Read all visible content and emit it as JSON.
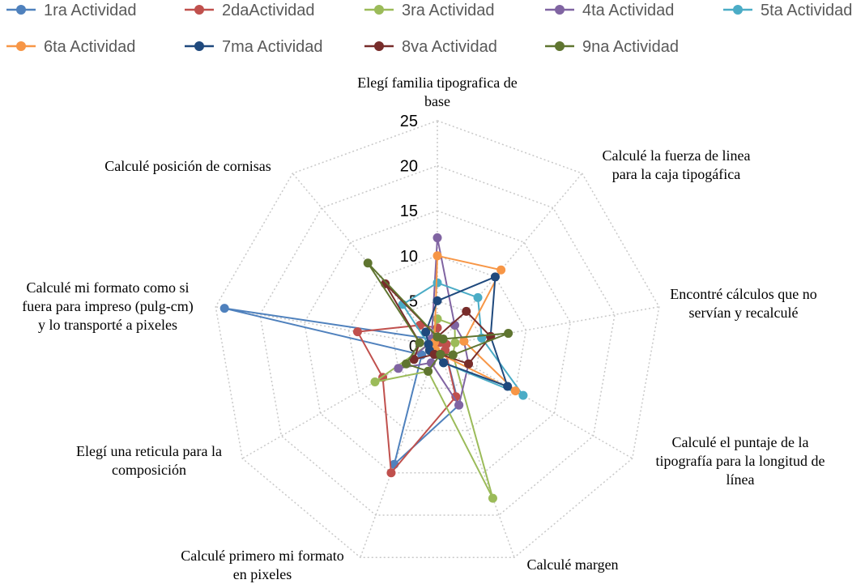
{
  "chart_data": {
    "type": "radar",
    "title": "",
    "rlim": [
      0,
      25
    ],
    "r_ticks": [
      "0",
      "5",
      "10",
      "15",
      "20",
      "25"
    ],
    "axes": [
      [
        "Elegí familia tipografica de",
        "base"
      ],
      [
        "Calculé la fuerza de linea",
        "para la caja tipogáfica"
      ],
      [
        "Encontré cálculos que no",
        "servían y recalculé"
      ],
      [
        "Calculé el puntaje de la",
        "tipografía para la longitud de",
        "línea"
      ],
      [
        "Calculé margen"
      ],
      [
        "Calculé primero mi formato",
        "en pixeles"
      ],
      [
        "Elegí una reticula para la",
        "composición"
      ],
      [
        "Calculé mi formato como si",
        "fuera para impreso (pulg-cm)",
        "y lo transporté a pixeles"
      ],
      [
        "Calculé posición de cornisas"
      ]
    ],
    "legend_position": "top",
    "series": [
      {
        "name": "1ra Actividad",
        "color": "#4f81bd",
        "values": [
          1,
          0.5,
          1,
          1,
          7,
          14,
          2,
          24,
          1
        ]
      },
      {
        "name": "2daActividad",
        "color": "#c0504d",
        "values": [
          2,
          0.5,
          1,
          1,
          6,
          15,
          7,
          9,
          3
        ]
      },
      {
        "name": "3ra Actividad",
        "color": "#9bbb59",
        "values": [
          3,
          3,
          2,
          2,
          18,
          3,
          8,
          1,
          1
        ]
      },
      {
        "name": "4ta Actividad",
        "color": "#8064a2",
        "values": [
          12,
          3,
          3,
          4,
          7,
          2,
          5,
          1,
          1
        ]
      },
      {
        "name": "5ta Actividad",
        "color": "#4bacc6",
        "values": [
          7,
          7,
          5,
          11,
          2,
          1,
          1,
          1,
          6
        ]
      },
      {
        "name": "6ta Actividad",
        "color": "#f79646",
        "values": [
          10,
          11,
          3,
          10,
          1,
          0.5,
          1,
          1,
          0.5
        ]
      },
      {
        "name": "7ma Actividad",
        "color": "#1f497d",
        "values": [
          5,
          10,
          6,
          9,
          2,
          1,
          1,
          1,
          2
        ]
      },
      {
        "name": "8va Actividad",
        "color": "#772c2a",
        "values": [
          1,
          5,
          6,
          4,
          1,
          1,
          3,
          2,
          9
        ]
      },
      {
        "name": "9na Actividad",
        "color": "#5f7530",
        "values": [
          1,
          1,
          8,
          2,
          1,
          3,
          4,
          2,
          12
        ]
      }
    ]
  }
}
